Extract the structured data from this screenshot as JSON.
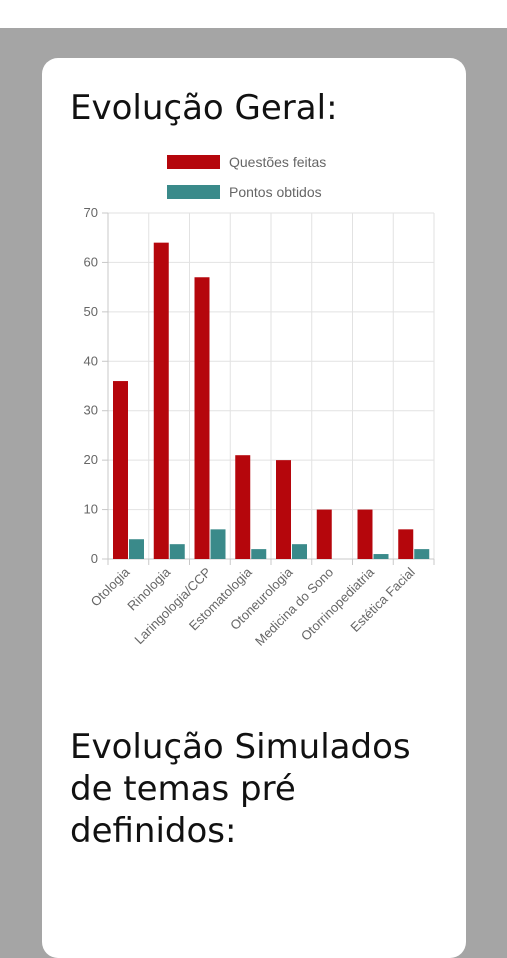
{
  "card": {
    "title": "Evolução Geral:",
    "title2": "Evolução Simulados de temas pré definidos:"
  },
  "chart_data": {
    "type": "bar",
    "categories": [
      "Otologia",
      "Rinologia",
      "Laringologia/CCP",
      "Estomatologia",
      "Otoneurologia",
      "Medicina do Sono",
      "Otorrinopediatria",
      "Estética Facial"
    ],
    "series": [
      {
        "name": "Questões feitas",
        "color": "#b5060c",
        "values": [
          36,
          64,
          57,
          21,
          20,
          10,
          10,
          6
        ]
      },
      {
        "name": "Pontos obtidos",
        "color": "#3a8a8a",
        "values": [
          4,
          3,
          6,
          2,
          3,
          0,
          1,
          2
        ]
      }
    ],
    "ylim": [
      0,
      70
    ],
    "yticks": [
      0,
      10,
      20,
      30,
      40,
      50,
      60,
      70
    ],
    "grid": true,
    "legend": "top"
  }
}
